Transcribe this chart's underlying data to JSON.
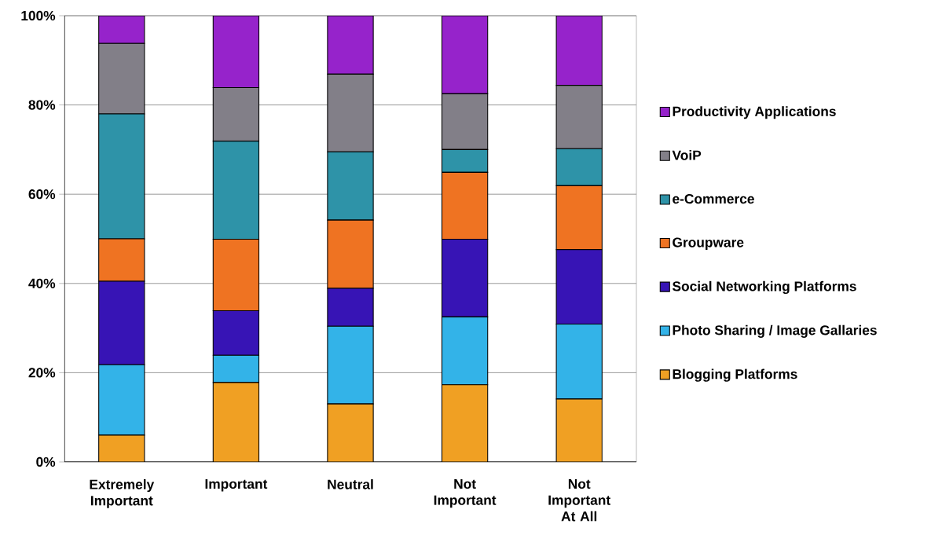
{
  "chart_data": {
    "type": "bar",
    "stacked": true,
    "categories": [
      "Extremely Important",
      "Important",
      "Neutral",
      "Not Important",
      "Not Important At All"
    ],
    "series": [
      {
        "name": "Blogging Platforms",
        "color": "#f0a023",
        "values": [
          6,
          17.8,
          13,
          17.3,
          14.1
        ]
      },
      {
        "name": "Photo Sharing / Image Gallaries",
        "color": "#33b3e8",
        "values": [
          15.8,
          6.1,
          17.4,
          15.2,
          16.8
        ]
      },
      {
        "name": "Social Networking Platforms",
        "color": "#3714b5",
        "values": [
          18.7,
          10,
          8.5,
          17.4,
          16.7
        ]
      },
      {
        "name": "Groupware",
        "color": "#ef7322",
        "values": [
          9.5,
          16,
          15.3,
          15,
          14.3
        ]
      },
      {
        "name": "e-Commerce",
        "color": "#2e93a8",
        "values": [
          28,
          22,
          15.3,
          5.1,
          8.3
        ]
      },
      {
        "name": "VoiP",
        "color": "#827f88",
        "values": [
          15.8,
          12,
          17.4,
          12.5,
          14.2
        ]
      },
      {
        "name": "Productivity Applications",
        "color": "#9623cb",
        "values": [
          6.2,
          16.1,
          13.1,
          17.5,
          15.6
        ]
      }
    ],
    "ylim": [
      0,
      100
    ],
    "yticks": [
      {
        "value": 0,
        "label": "0%"
      },
      {
        "value": 20,
        "label": "20%"
      },
      {
        "value": 40,
        "label": "40%"
      },
      {
        "value": 60,
        "label": "60%"
      },
      {
        "value": 80,
        "label": "80%"
      },
      {
        "value": 100,
        "label": "100%"
      }
    ],
    "grid": "y",
    "legend": "right"
  }
}
